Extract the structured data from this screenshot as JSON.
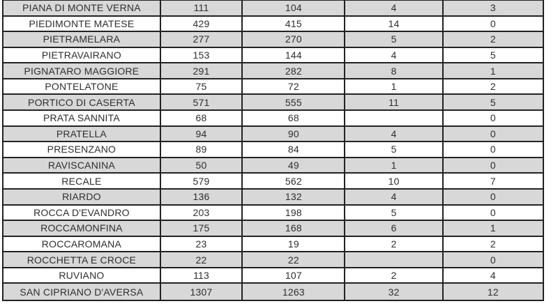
{
  "page": {
    "background_color": "#ffffff"
  },
  "table": {
    "description": "municipality-statistics-table",
    "style": {
      "alt_row_color": "#d8d8d8",
      "base_row_color": "#ffffff",
      "border_color": "#222222",
      "text_color": "#2e2e2e"
    },
    "rows": [
      {
        "name": "PIANA DI MONTE VERNA",
        "values": [
          "111",
          "104",
          "4",
          "3"
        ]
      },
      {
        "name": "PIEDIMONTE MATESE",
        "values": [
          "429",
          "415",
          "14",
          "0"
        ]
      },
      {
        "name": "PIETRAMELARA",
        "values": [
          "277",
          "270",
          "5",
          "2"
        ]
      },
      {
        "name": "PIETRAVAIRANO",
        "values": [
          "153",
          "144",
          "4",
          "5"
        ]
      },
      {
        "name": "PIGNATARO MAGGIORE",
        "values": [
          "291",
          "282",
          "8",
          "1"
        ]
      },
      {
        "name": "PONTELATONE",
        "values": [
          "75",
          "72",
          "1",
          "2"
        ]
      },
      {
        "name": "PORTICO DI CASERTA",
        "values": [
          "571",
          "555",
          "11",
          "5"
        ]
      },
      {
        "name": "PRATA SANNITA",
        "values": [
          "68",
          "68",
          "",
          "0"
        ]
      },
      {
        "name": "PRATELLA",
        "values": [
          "94",
          "90",
          "4",
          "0"
        ]
      },
      {
        "name": "PRESENZANO",
        "values": [
          "89",
          "84",
          "5",
          "0"
        ]
      },
      {
        "name": "RAVISCANINA",
        "values": [
          "50",
          "49",
          "1",
          "0"
        ]
      },
      {
        "name": "RECALE",
        "values": [
          "579",
          "562",
          "10",
          "7"
        ]
      },
      {
        "name": "RIARDO",
        "values": [
          "136",
          "132",
          "4",
          "0"
        ]
      },
      {
        "name": "ROCCA D'EVANDRO",
        "values": [
          "203",
          "198",
          "5",
          "0"
        ]
      },
      {
        "name": "ROCCAMONFINA",
        "values": [
          "175",
          "168",
          "6",
          "1"
        ]
      },
      {
        "name": "ROCCAROMANA",
        "values": [
          "23",
          "19",
          "2",
          "2"
        ]
      },
      {
        "name": "ROCCHETTA E CROCE",
        "values": [
          "22",
          "22",
          "",
          "0"
        ]
      },
      {
        "name": "RUVIANO",
        "values": [
          "113",
          "107",
          "2",
          "4"
        ]
      },
      {
        "name": "SAN CIPRIANO D'AVERSA",
        "values": [
          "1307",
          "1263",
          "32",
          "12"
        ]
      }
    ]
  }
}
